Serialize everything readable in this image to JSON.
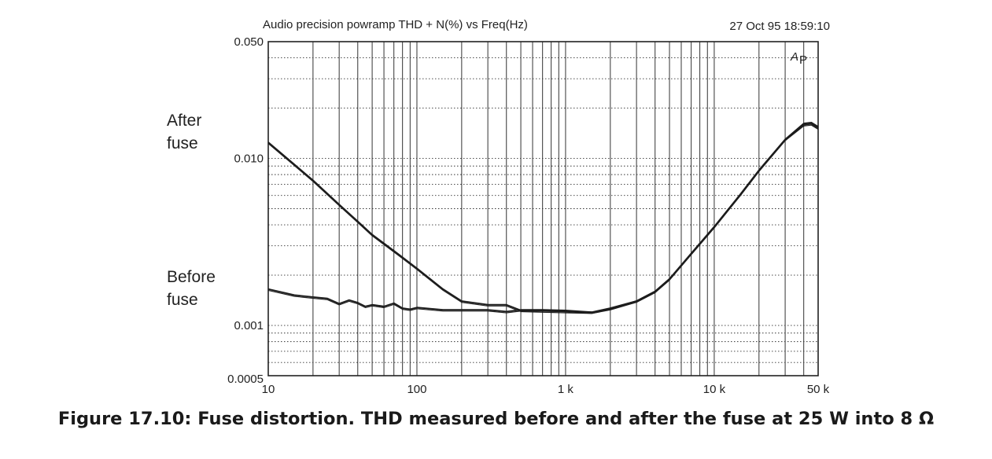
{
  "chart_data": {
    "type": "line",
    "title": "Audio precision powramp THD + N(%) vs Freq(Hz)",
    "timestamp": "27 Oct 95 18:59:10",
    "marker": "A",
    "marker_sub": "P",
    "x_scale": "log",
    "y_scale": "log",
    "xlim": [
      10,
      50000
    ],
    "ylim": [
      0.0005,
      0.05
    ],
    "grid": true,
    "x_ticks": [
      {
        "value": 10,
        "label": "10"
      },
      {
        "value": 100,
        "label": "100"
      },
      {
        "value": 1000,
        "label": "1 k"
      },
      {
        "value": 10000,
        "label": "10 k"
      },
      {
        "value": 50000,
        "label": "50 k"
      }
    ],
    "y_ticks": [
      {
        "value": 0.05,
        "label": "0.050"
      },
      {
        "value": 0.01,
        "label": "0.010"
      },
      {
        "value": 0.001,
        "label": "0.001"
      },
      {
        "value": 0.0005,
        "label": "0.0005"
      }
    ],
    "series": [
      {
        "name": "After fuse",
        "label_lines": [
          "After",
          "fuse"
        ],
        "x": [
          10,
          15,
          20,
          30,
          40,
          50,
          70,
          100,
          150,
          200,
          300,
          400,
          500,
          700,
          1000,
          1500,
          2000,
          3000,
          4000,
          5000,
          7000,
          10000,
          15000,
          20000,
          30000,
          40000,
          45000,
          50000
        ],
        "y": [
          0.0125,
          0.0092,
          0.0074,
          0.0053,
          0.0042,
          0.0035,
          0.0028,
          0.0022,
          0.00165,
          0.0014,
          0.00133,
          0.00133,
          0.00123,
          0.00122,
          0.00121,
          0.0012,
          0.00127,
          0.0014,
          0.0016,
          0.0019,
          0.0027,
          0.0039,
          0.0061,
          0.0085,
          0.013,
          0.0159,
          0.0161,
          0.0152
        ]
      },
      {
        "name": "Before fuse",
        "label_lines": [
          "Before",
          "fuse"
        ],
        "x": [
          10,
          15,
          20,
          25,
          30,
          35,
          40,
          45,
          50,
          60,
          70,
          80,
          90,
          100,
          150,
          200,
          300,
          400,
          500,
          700,
          1000,
          1500,
          2000,
          3000,
          4000,
          5000,
          7000,
          10000,
          15000,
          20000,
          30000,
          40000,
          45000,
          50000
        ],
        "y": [
          0.00165,
          0.00152,
          0.00148,
          0.00145,
          0.00135,
          0.00142,
          0.00137,
          0.0013,
          0.00133,
          0.0013,
          0.00136,
          0.00127,
          0.00125,
          0.00128,
          0.00124,
          0.00124,
          0.00124,
          0.00121,
          0.00124,
          0.00124,
          0.00123,
          0.0012,
          0.00126,
          0.0014,
          0.0016,
          0.0019,
          0.0027,
          0.0039,
          0.0061,
          0.0085,
          0.013,
          0.0162,
          0.0164,
          0.0155
        ]
      }
    ]
  },
  "caption": "Figure 17.10:  Fuse distortion. THD measured before and after the fuse at 25 W into 8 Ω"
}
